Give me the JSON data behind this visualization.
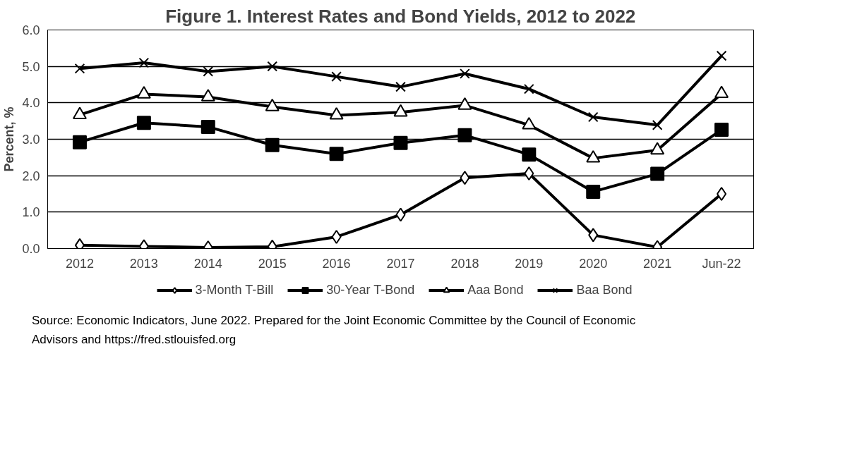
{
  "chart_data": {
    "type": "line",
    "title": "Figure 1. Interest Rates and Bond Yields, 2012 to 2022",
    "ylabel": "Percent, %",
    "categories": [
      "2012",
      "2013",
      "2014",
      "2015",
      "2016",
      "2017",
      "2018",
      "2019",
      "2020",
      "2021",
      "Jun-22"
    ],
    "series": [
      {
        "name": "3-Month T-Bill",
        "color": "#000000",
        "marker": "diamond",
        "values": [
          0.09,
          0.06,
          0.03,
          0.05,
          0.32,
          0.93,
          1.94,
          2.06,
          0.37,
          0.04,
          1.5
        ]
      },
      {
        "name": "30-Year T-Bond",
        "color": "#000000",
        "marker": "square",
        "values": [
          2.92,
          3.45,
          3.34,
          2.84,
          2.6,
          2.9,
          3.11,
          2.58,
          1.56,
          2.05,
          3.26
        ]
      },
      {
        "name": "Aaa Bond",
        "color": "#000000",
        "marker": "triangle",
        "values": [
          3.67,
          4.24,
          4.16,
          3.89,
          3.66,
          3.74,
          3.93,
          3.39,
          2.48,
          2.7,
          4.25
        ]
      },
      {
        "name": "Baa Bond",
        "color": "#000000",
        "marker": "cross",
        "values": [
          4.94,
          5.1,
          4.86,
          5.0,
          4.72,
          4.44,
          4.8,
          4.38,
          3.61,
          3.39,
          5.29
        ]
      }
    ],
    "ylim": [
      0,
      6
    ],
    "yticks": [
      {
        "value": 0,
        "label": "0.0"
      },
      {
        "value": 1,
        "label": "1.0"
      },
      {
        "value": 2,
        "label": "2.0"
      },
      {
        "value": 3,
        "label": "3.0"
      },
      {
        "value": 4,
        "label": "4.0"
      },
      {
        "value": 5,
        "label": "5.0"
      },
      {
        "value": 6,
        "label": "6.0"
      }
    ],
    "grid": "y",
    "legend": "bottom",
    "line_style": "solid",
    "annotations": [
      "Source: Economic Indicators, June 2022. Prepared for the Joint Economic Committee by the Council of Economic",
      "Advisors and https://fred.stlouisfed.org"
    ]
  }
}
